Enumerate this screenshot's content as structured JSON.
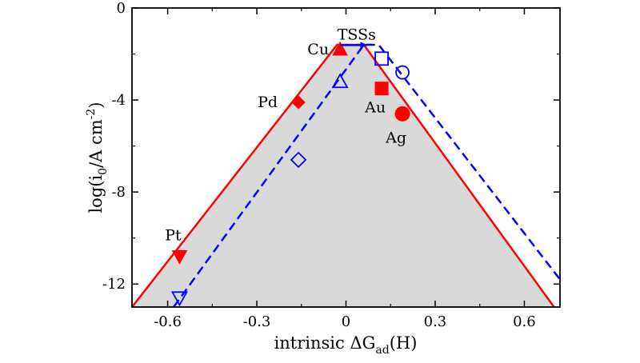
{
  "chart_data": {
    "type": "scatter",
    "title": "",
    "xlabel": {
      "main": "intrinsic ΔG",
      "sub": "ad",
      "suffix": "(H)"
    },
    "ylabel": {
      "main": "log(i",
      "sub": "0",
      "mid": "/A cm",
      "sup": "-2",
      "end": ")"
    },
    "xlim": [
      -0.72,
      0.72
    ],
    "ylim": [
      -13.0,
      0.0
    ],
    "xticks": [
      -0.6,
      -0.3,
      0,
      0.3,
      0.6
    ],
    "xtick_labels": [
      "-0.6",
      "-0.3",
      "0",
      "0.3",
      "0.6"
    ],
    "yticks": [
      0,
      -4,
      -8,
      -12
    ],
    "ytick_labels": [
      "0",
      "-4",
      "-8",
      "-12"
    ],
    "fill_color": "#d9d9d9",
    "series": [
      {
        "style": "solid",
        "color": "#ff0000",
        "points": [
          {
            "label": "Pt",
            "marker": "triangle-down",
            "x": -0.56,
            "y": -10.8
          },
          {
            "label": "Pd",
            "marker": "diamond",
            "x": -0.16,
            "y": -4.1
          },
          {
            "label": "Cu",
            "marker": "triangle-up",
            "x": -0.02,
            "y": -1.8
          },
          {
            "label": "Au",
            "marker": "square",
            "x": 0.12,
            "y": -3.5
          },
          {
            "label": "Ag",
            "marker": "circle",
            "x": 0.19,
            "y": -4.6
          }
        ],
        "volcano": [
          [
            -0.72,
            -13.0
          ],
          [
            -0.03,
            -1.6
          ],
          [
            0.06,
            -1.6
          ],
          [
            0.7,
            -13.0
          ]
        ]
      },
      {
        "style": "dashed",
        "color": "#0000ff",
        "points": [
          {
            "marker": "triangle-down-open",
            "x": -0.56,
            "y": -12.6
          },
          {
            "marker": "diamond-open",
            "x": -0.16,
            "y": -6.6
          },
          {
            "marker": "triangle-up-open",
            "x": -0.02,
            "y": -3.2
          },
          {
            "marker": "square-open",
            "x": 0.12,
            "y": -2.2
          },
          {
            "marker": "circle-open",
            "x": 0.19,
            "y": -2.8
          }
        ],
        "volcano": [
          [
            -0.58,
            -13.0
          ],
          [
            0.06,
            -1.6
          ],
          [
            0.11,
            -1.6
          ],
          [
            0.72,
            -11.8
          ]
        ]
      }
    ],
    "annotation": {
      "text": "TSSs",
      "color": "#0000ff",
      "arrow_from": -0.02,
      "arrow_to": 0.07,
      "y": -1.3
    }
  }
}
